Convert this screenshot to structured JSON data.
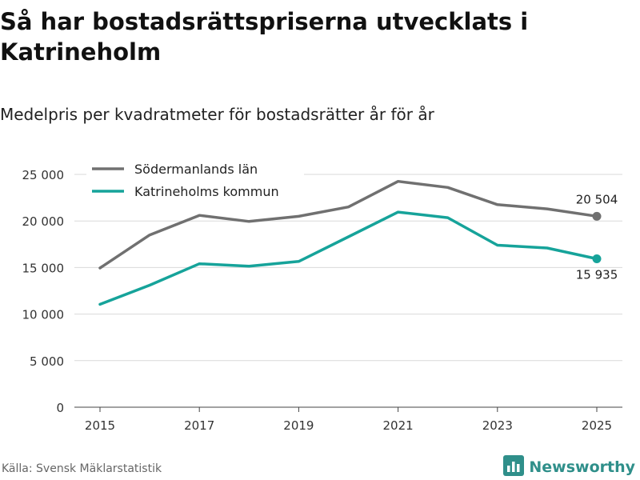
{
  "title": "Så har bostadsrättspriserna utvecklats i Katrineholm",
  "subtitle": "Medelpris per kvadratmeter för bostadsrätter år för år",
  "source": "Källa: Svensk Mäklarstatistik",
  "brand": {
    "name": "Newsworthy",
    "icon": "bar-chart-icon"
  },
  "colors": {
    "sodermanland": "#707070",
    "katrineholm": "#16a39a",
    "grid": "#d9d9d9"
  },
  "chart_data": {
    "type": "line",
    "title": "Så har bostadsrättspriserna utvecklats i Katrineholm",
    "subtitle": "Medelpris per kvadratmeter för bostadsrätter år för år",
    "x": [
      2015,
      2016,
      2017,
      2018,
      2019,
      2020,
      2021,
      2022,
      2023,
      2024,
      2025
    ],
    "xticks": [
      "2015",
      "2017",
      "2019",
      "2021",
      "2023",
      "2025"
    ],
    "yticks": [
      "0",
      "5 000",
      "10 000",
      "15 000",
      "20 000",
      "25 000"
    ],
    "ylim": [
      0,
      25000
    ],
    "series": [
      {
        "name": "Södermanlands län",
        "color": "#707070",
        "values": [
          14950,
          18500,
          20600,
          19950,
          20500,
          21500,
          24250,
          23600,
          21750,
          21300,
          20504
        ],
        "end_label": "20 504"
      },
      {
        "name": "Katrineholms kommun",
        "color": "#16a39a",
        "values": [
          11050,
          13100,
          15400,
          15150,
          15650,
          18300,
          20950,
          20350,
          17400,
          17100,
          15935
        ],
        "end_label": "15 935"
      }
    ],
    "legend": "top-left",
    "grid": true
  }
}
